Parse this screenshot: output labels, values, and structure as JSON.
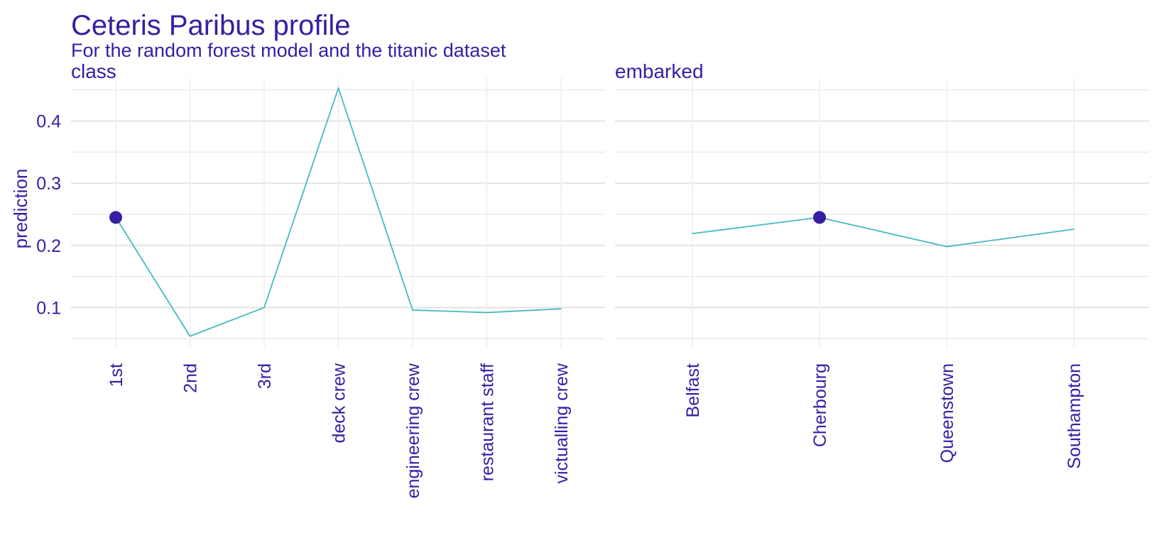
{
  "title": "Ceteris Paribus profile",
  "subtitle": "For the random forest model and the titanic dataset",
  "colors": {
    "text": "#371ea3",
    "line": "#46bac2",
    "point": "#371ea3",
    "grid": "#e6e6e6"
  },
  "chart_data": {
    "type": "line",
    "ylabel": "prediction",
    "ylim": [
      0.04,
      0.46
    ],
    "yticks": [
      0.1,
      0.2,
      0.3,
      0.4
    ],
    "ytick_labels": [
      "0.1",
      "0.2",
      "0.3",
      "0.4"
    ],
    "grid": true,
    "panels": [
      {
        "label": "class",
        "categories": [
          "1st",
          "2nd",
          "3rd",
          "deck crew",
          "engineering crew",
          "restaurant staff",
          "victualling crew"
        ],
        "values": [
          0.245,
          0.054,
          0.1,
          0.453,
          0.096,
          0.092,
          0.098
        ],
        "observation": {
          "category": "1st",
          "value": 0.245
        }
      },
      {
        "label": "embarked",
        "categories": [
          "Belfast",
          "Cherbourg",
          "Queenstown",
          "Southampton"
        ],
        "values": [
          0.219,
          0.245,
          0.198,
          0.226
        ],
        "observation": {
          "category": "Cherbourg",
          "value": 0.245
        }
      }
    ]
  }
}
